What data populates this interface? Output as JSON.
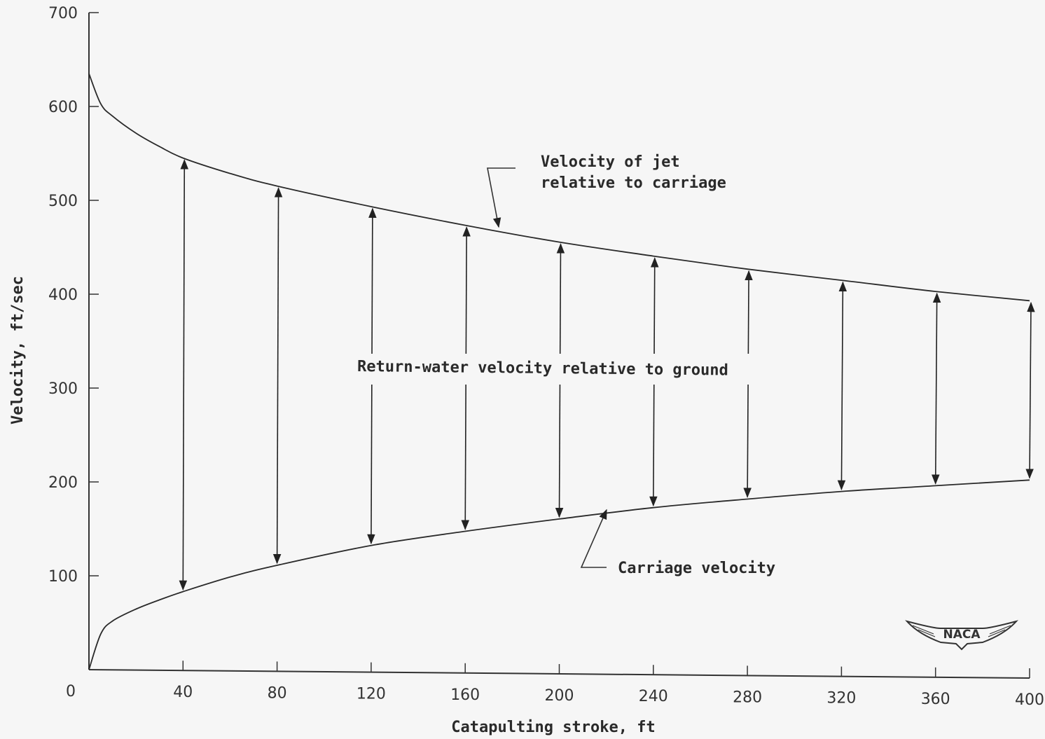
{
  "chart_data": {
    "type": "line",
    "xlabel": "Catapulting stroke, ft",
    "ylabel": "Velocity, ft/sec",
    "xlim": [
      0,
      400
    ],
    "ylim": [
      0,
      700
    ],
    "x_ticks": [
      "0",
      "40",
      "80",
      "120",
      "160",
      "200",
      "240",
      "280",
      "320",
      "360",
      "400"
    ],
    "y_ticks": [
      "100",
      "200",
      "300",
      "400",
      "500",
      "600",
      "700"
    ],
    "series": [
      {
        "name": "Velocity of jet relative to carriage",
        "x": [
          0,
          5,
          10,
          20,
          30,
          40,
          60,
          80,
          120,
          160,
          200,
          240,
          280,
          320,
          360,
          400
        ],
        "y": [
          635,
          603,
          590,
          572,
          558,
          546,
          530,
          517,
          496,
          477,
          460,
          446,
          433,
          422,
          411,
          402
        ]
      },
      {
        "name": "Carriage velocity",
        "x": [
          0,
          5,
          10,
          20,
          30,
          40,
          60,
          80,
          120,
          160,
          200,
          240,
          280,
          320,
          360,
          400
        ],
        "y": [
          0,
          38,
          52,
          65,
          75,
          84,
          100,
          113,
          135,
          151,
          165,
          178,
          188,
          197,
          204,
          211
        ]
      }
    ],
    "arrows_at_x": [
      40,
      80,
      120,
      160,
      200,
      240,
      280,
      320,
      360,
      400
    ],
    "grid": false,
    "annotations": {
      "jet": "Velocity of jet relative to carriage",
      "jet_line1": "Velocity of jet",
      "jet_line2": "relative to carriage",
      "return": "Return-water velocity relative to ground",
      "carriage": "Carriage velocity"
    },
    "logo": "NACA"
  }
}
